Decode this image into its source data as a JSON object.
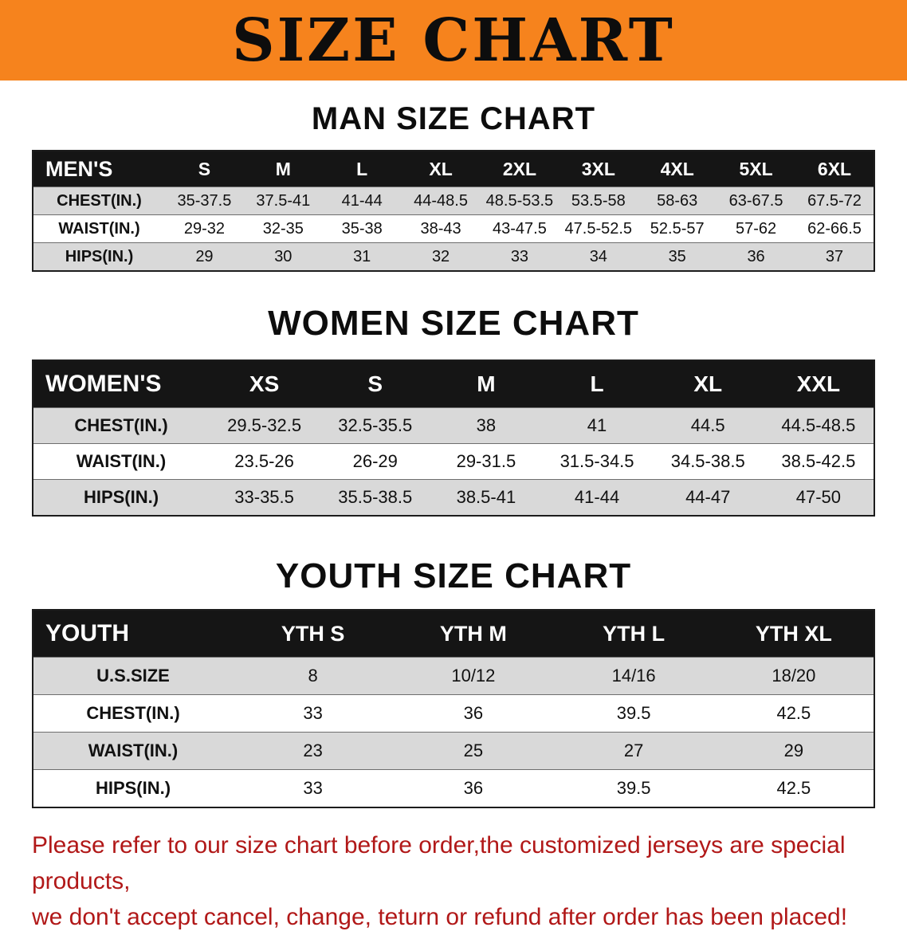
{
  "banner": {
    "title": "SIZE CHART",
    "bg_color": "#f6831d",
    "text_color": "#0d0d0d"
  },
  "chart_data": [
    {
      "type": "table",
      "title": "MAN SIZE CHART",
      "columns": [
        "MEN'S",
        "S",
        "M",
        "L",
        "XL",
        "2XL",
        "3XL",
        "4XL",
        "5XL",
        "6XL"
      ],
      "rows": [
        [
          "CHEST(IN.)",
          "35-37.5",
          "37.5-41",
          "41-44",
          "44-48.5",
          "48.5-53.5",
          "53.5-58",
          "58-63",
          "63-67.5",
          "67.5-72"
        ],
        [
          "WAIST(IN.)",
          "29-32",
          "32-35",
          "35-38",
          "38-43",
          "43-47.5",
          "47.5-52.5",
          "52.5-57",
          "57-62",
          "62-66.5"
        ],
        [
          "HIPS(IN.)",
          "29",
          "30",
          "31",
          "32",
          "33",
          "34",
          "35",
          "36",
          "37"
        ]
      ]
    },
    {
      "type": "table",
      "title": "WOMEN SIZE CHART",
      "columns": [
        "WOMEN'S",
        "XS",
        "S",
        "M",
        "L",
        "XL",
        "XXL"
      ],
      "rows": [
        [
          "CHEST(IN.)",
          "29.5-32.5",
          "32.5-35.5",
          "38",
          "41",
          "44.5",
          "44.5-48.5"
        ],
        [
          "WAIST(IN.)",
          "23.5-26",
          "26-29",
          "29-31.5",
          "31.5-34.5",
          "34.5-38.5",
          "38.5-42.5"
        ],
        [
          "HIPS(IN.)",
          "33-35.5",
          "35.5-38.5",
          "38.5-41",
          "41-44",
          "44-47",
          "47-50"
        ]
      ]
    },
    {
      "type": "table",
      "title": "YOUTH SIZE CHART",
      "columns": [
        "YOUTH",
        "YTH S",
        "YTH M",
        "YTH L",
        "YTH XL"
      ],
      "rows": [
        [
          "U.S.SIZE",
          "8",
          "10/12",
          "14/16",
          "18/20"
        ],
        [
          "CHEST(IN.)",
          "33",
          "36",
          "39.5",
          "42.5"
        ],
        [
          "WAIST(IN.)",
          "23",
          "25",
          "27",
          "29"
        ],
        [
          "HIPS(IN.)",
          "33",
          "36",
          "39.5",
          "42.5"
        ]
      ]
    }
  ],
  "footer": {
    "line1": "Please refer to our size chart before order,the customized jerseys are special products,",
    "line2": "we don't accept cancel, change, teturn or refund after order has been placed!",
    "text_color": "#b11818"
  }
}
